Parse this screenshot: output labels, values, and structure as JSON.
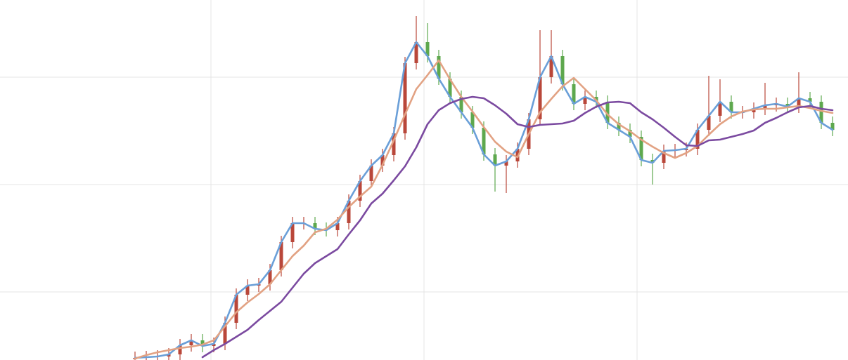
{
  "chart_data": {
    "type": "candlestick",
    "xlim": [
      0,
      1206
    ],
    "ylim": [
      0,
      513
    ],
    "xticks": [
      300,
      603,
      906
    ],
    "yticks": [
      97,
      250,
      403
    ],
    "grid": true,
    "up_color": "#b9473a",
    "down_color": "#5ea84e",
    "x": [
      192,
      208,
      224,
      240,
      256,
      272,
      288,
      304,
      320,
      336,
      352,
      368,
      384,
      400,
      416,
      432,
      448,
      464,
      480,
      496,
      512,
      528,
      544,
      560,
      576,
      592,
      608,
      624,
      640,
      656,
      672,
      688,
      704,
      720,
      736,
      752,
      768,
      784,
      800,
      816,
      832,
      848,
      864,
      880,
      896,
      912,
      928,
      944,
      960,
      976,
      992,
      1008,
      1024,
      1040,
      1056,
      1072,
      1088,
      1104,
      1120,
      1136,
      1152,
      1168,
      1184
    ],
    "open": [
      1,
      3,
      4,
      5,
      8,
      21,
      28,
      20,
      23,
      53,
      93,
      106,
      108,
      128,
      168,
      195,
      195,
      187,
      185,
      195,
      227,
      255,
      277,
      292,
      323,
      423,
      453,
      433,
      401,
      375,
      353,
      331,
      293,
      277,
      283,
      301,
      343,
      403,
      433,
      393,
      365,
      375,
      368,
      338,
      328,
      318,
      285,
      281,
      298,
      299,
      301,
      328,
      348,
      368,
      353,
      353,
      358,
      363,
      365,
      361,
      373,
      368,
      338
    ],
    "high": [
      12,
      13,
      14,
      17,
      30,
      37,
      37,
      32,
      62,
      102,
      115,
      117,
      137,
      177,
      204,
      204,
      204,
      196,
      204,
      236,
      264,
      286,
      301,
      332,
      432,
      490,
      480,
      442,
      410,
      384,
      362,
      340,
      302,
      292,
      310,
      352,
      470,
      470,
      442,
      402,
      384,
      384,
      377,
      347,
      337,
      327,
      294,
      307,
      308,
      310,
      337,
      405,
      400,
      377,
      362,
      367,
      395,
      374,
      374,
      410,
      382,
      377,
      347
    ],
    "low": [
      -8,
      -6,
      -5,
      -4,
      -1,
      12,
      11,
      11,
      14,
      44,
      84,
      97,
      99,
      119,
      159,
      186,
      178,
      176,
      176,
      186,
      218,
      246,
      268,
      283,
      314,
      414,
      424,
      392,
      366,
      344,
      322,
      284,
      240,
      238,
      274,
      292,
      334,
      394,
      384,
      356,
      356,
      359,
      329,
      319,
      309,
      276,
      250,
      272,
      289,
      290,
      292,
      319,
      339,
      344,
      344,
      344,
      349,
      354,
      352,
      352,
      359,
      329,
      319
    ],
    "close": [
      3,
      4,
      5,
      8,
      21,
      28,
      20,
      23,
      53,
      93,
      106,
      108,
      128,
      168,
      195,
      195,
      187,
      185,
      195,
      227,
      255,
      277,
      292,
      323,
      423,
      453,
      433,
      401,
      375,
      353,
      331,
      293,
      277,
      283,
      301,
      343,
      403,
      433,
      393,
      365,
      375,
      368,
      338,
      328,
      318,
      285,
      281,
      298,
      299,
      301,
      328,
      348,
      368,
      353,
      353,
      358,
      363,
      365,
      361,
      373,
      368,
      338,
      328
    ],
    "series": [
      {
        "color": "#6a9fd8",
        "values": [
          3,
          4,
          5,
          8,
          21,
          28,
          20,
          23,
          53,
          93,
          106,
          108,
          128,
          168,
          195,
          195,
          187,
          185,
          195,
          227,
          255,
          277,
          292,
          323,
          423,
          453,
          433,
          401,
          375,
          353,
          331,
          293,
          277,
          283,
          301,
          343,
          403,
          433,
          393,
          365,
          375,
          368,
          338,
          328,
          318,
          285,
          281,
          298,
          299,
          301,
          328,
          348,
          368,
          353,
          353,
          358,
          363,
          365,
          361,
          373,
          368,
          338,
          328
        ]
      },
      {
        "color": "#e2a283",
        "values": [
          2,
          7,
          11,
          14,
          17,
          19,
          22,
          28,
          48,
          68,
          82,
          94,
          108,
          128,
          148,
          163,
          182,
          187,
          200,
          218,
          233,
          247,
          278,
          313,
          350,
          386,
          406,
          427,
          400,
          375,
          354,
          332,
          311,
          297,
          289,
          322,
          353,
          372,
          390,
          402,
          386,
          370,
          350,
          336,
          326,
          314,
          304,
          295,
          288,
          295,
          305,
          321,
          336,
          347,
          354,
          357,
          358,
          358,
          360,
          362,
          359,
          355,
          352
        ]
      },
      {
        "color": "#7b4aa0",
        "values": [
          null,
          null,
          null,
          null,
          null,
          null,
          4,
          14,
          23,
          33,
          43,
          57,
          70,
          83,
          103,
          123,
          138,
          148,
          158,
          179,
          199,
          223,
          237,
          256,
          276,
          303,
          336,
          356,
          366,
          372,
          375,
          373,
          363,
          351,
          336,
          332,
          335,
          336,
          337,
          341,
          352,
          361,
          367,
          368,
          366,
          353,
          343,
          331,
          318,
          306,
          305,
          313,
          314,
          318,
          322,
          327,
          338,
          345,
          353,
          360,
          362,
          358,
          356
        ]
      }
    ]
  }
}
